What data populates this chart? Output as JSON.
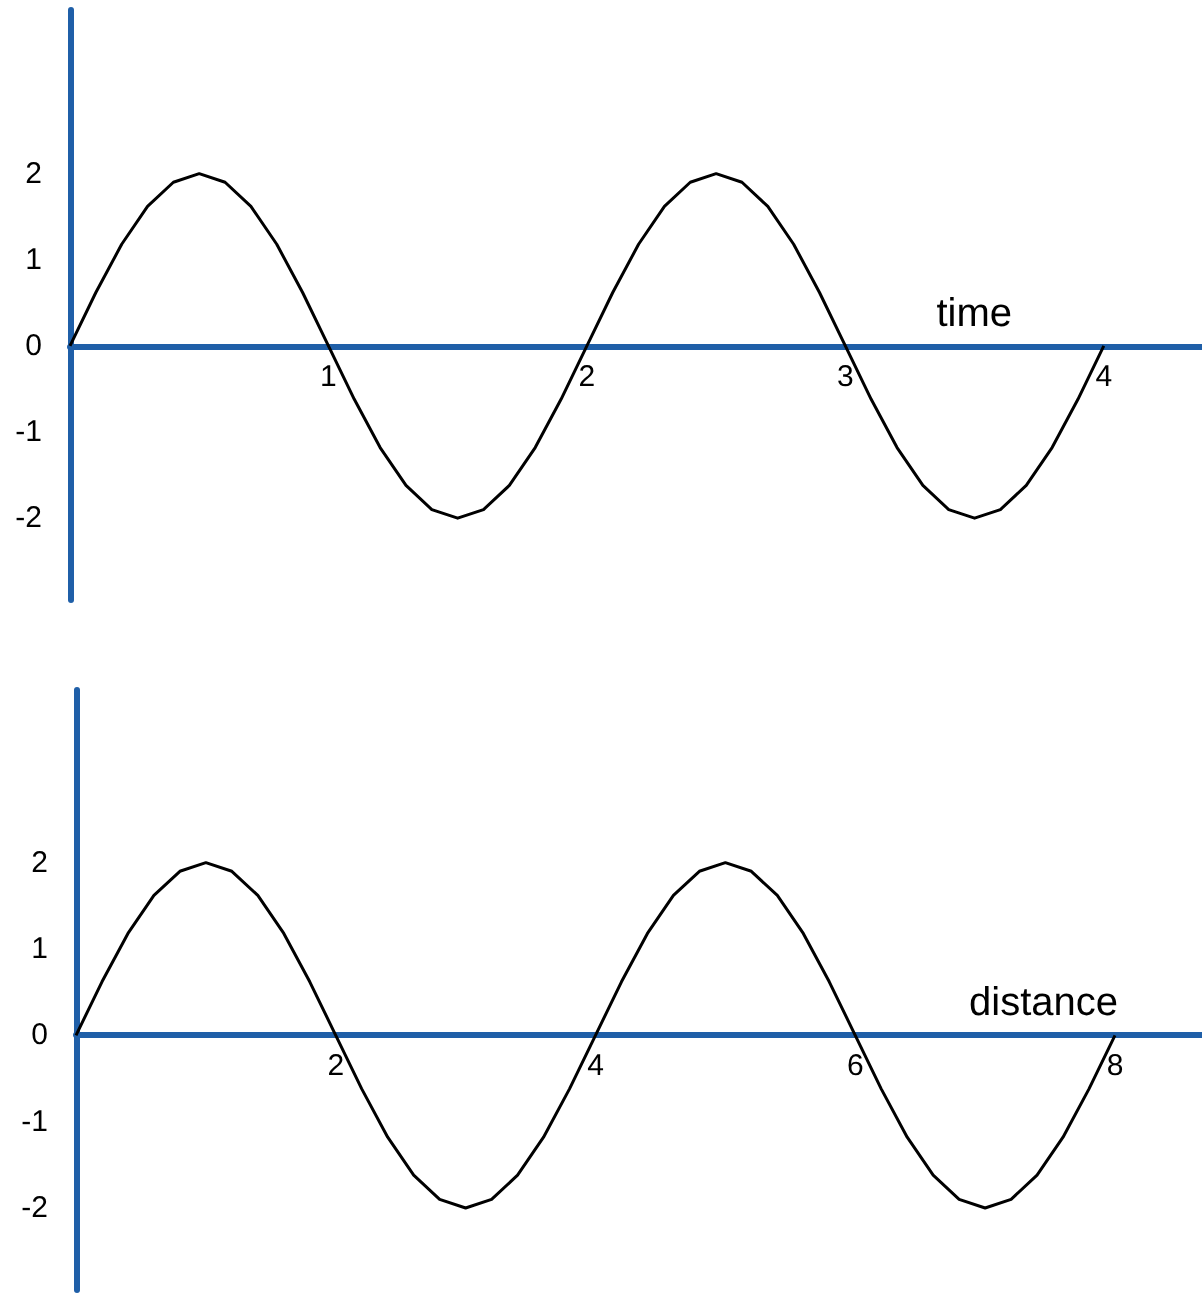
{
  "chart_data": [
    {
      "type": "line",
      "xlabel": "time",
      "x": [
        0,
        0.1,
        0.2,
        0.3,
        0.4,
        0.5,
        0.6,
        0.7,
        0.8,
        0.9,
        1,
        1.1,
        1.2,
        1.3,
        1.4,
        1.5,
        1.6,
        1.7,
        1.8,
        1.9,
        2,
        2.1,
        2.2,
        2.3,
        2.4,
        2.5,
        2.6,
        2.7,
        2.8,
        2.9,
        3,
        3.1,
        3.2,
        3.3,
        3.4,
        3.5,
        3.6,
        3.7,
        3.8,
        3.9,
        4
      ],
      "series": [
        {
          "color": "#000000",
          "values": [
            0,
            0.62,
            1.18,
            1.62,
            1.9,
            2,
            1.9,
            1.62,
            1.18,
            0.62,
            0,
            -0.62,
            -1.18,
            -1.62,
            -1.9,
            -2,
            -1.9,
            -1.62,
            -1.18,
            -0.62,
            0,
            0.62,
            1.18,
            1.62,
            1.9,
            2,
            1.9,
            1.62,
            1.18,
            0.62,
            0,
            -0.62,
            -1.18,
            -1.62,
            -1.9,
            -2,
            -1.9,
            -1.62,
            -1.18,
            -0.62,
            0
          ]
        }
      ],
      "xlim": [
        0,
        4.38
      ],
      "xticks": [
        1,
        2,
        3,
        4
      ],
      "ylim": [
        -2.95,
        3.9
      ],
      "yticks": [
        -2,
        -1,
        0,
        1,
        2
      ],
      "grid": false,
      "marker": "none"
    },
    {
      "type": "line",
      "xlabel": "distance",
      "x": [
        0,
        0.2,
        0.4,
        0.6,
        0.8,
        1,
        1.2,
        1.4,
        1.6,
        1.8,
        2,
        2.2,
        2.4,
        2.6,
        2.8,
        3,
        3.2,
        3.4,
        3.6,
        3.8,
        4,
        4.2,
        4.4,
        4.6,
        4.8,
        5,
        5.2,
        5.4,
        5.6,
        5.8,
        6,
        6.2,
        6.4,
        6.6,
        6.8,
        7,
        7.2,
        7.4,
        7.6,
        7.8,
        8
      ],
      "series": [
        {
          "color": "#000000",
          "values": [
            0,
            0.62,
            1.18,
            1.62,
            1.9,
            2,
            1.9,
            1.62,
            1.18,
            0.62,
            0,
            -0.62,
            -1.18,
            -1.62,
            -1.9,
            -2,
            -1.9,
            -1.62,
            -1.18,
            -0.62,
            0,
            0.62,
            1.18,
            1.62,
            1.9,
            2,
            1.9,
            1.62,
            1.18,
            0.62,
            0,
            -0.62,
            -1.18,
            -1.62,
            -1.9,
            -2,
            -1.9,
            -1.62,
            -1.18,
            -0.62,
            0
          ]
        }
      ],
      "xlim": [
        0,
        8.67
      ],
      "xticks": [
        2,
        4,
        6,
        8
      ],
      "ylim": [
        -2.95,
        4.0
      ],
      "yticks": [
        -2,
        -1,
        0,
        1,
        2
      ],
      "grid": false,
      "marker": "none"
    }
  ]
}
